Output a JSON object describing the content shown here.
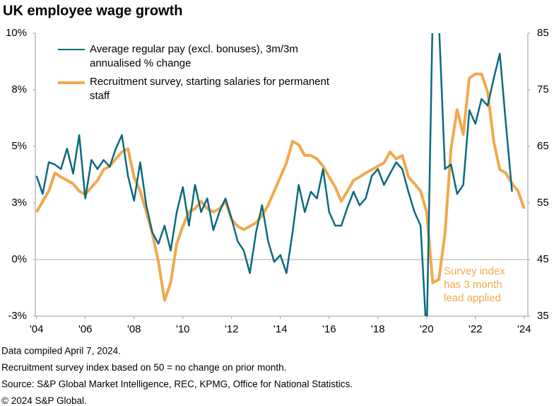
{
  "chart_data": {
    "type": "line",
    "title": "UK employee  wage growth",
    "x": [
      2004,
      2004.25,
      2004.5,
      2004.75,
      2005,
      2005.25,
      2005.5,
      2005.75,
      2006,
      2006.25,
      2006.5,
      2006.75,
      2007,
      2007.25,
      2007.5,
      2007.75,
      2008,
      2008.25,
      2008.5,
      2008.75,
      2009,
      2009.25,
      2009.5,
      2009.75,
      2010,
      2010.25,
      2010.5,
      2010.75,
      2011,
      2011.25,
      2011.5,
      2011.75,
      2012,
      2012.25,
      2012.5,
      2012.75,
      2013,
      2013.25,
      2013.5,
      2013.75,
      2014,
      2014.25,
      2014.5,
      2014.75,
      2015,
      2015.25,
      2015.5,
      2015.75,
      2016,
      2016.25,
      2016.5,
      2016.75,
      2017,
      2017.25,
      2017.5,
      2017.75,
      2018,
      2018.25,
      2018.5,
      2018.75,
      2019,
      2019.25,
      2019.5,
      2019.75,
      2020,
      2020.25,
      2020.5,
      2020.75,
      2021,
      2021.25,
      2021.5,
      2021.75,
      2022,
      2022.25,
      2022.5,
      2022.75,
      2023,
      2023.25,
      2023.5,
      2023.75,
      2024
    ],
    "series": [
      {
        "name": "Average regular pay (excl. bonuses), 3m/3m annualised % change",
        "color": "#0b6a7e",
        "axis": "y",
        "values": [
          3.7,
          2.9,
          4.3,
          4.2,
          4.0,
          4.9,
          3.8,
          5.5,
          2.7,
          4.4,
          4.0,
          4.4,
          4.1,
          4.9,
          5.5,
          3.7,
          2.6,
          4.3,
          2.4,
          1.2,
          0.7,
          1.5,
          0.4,
          2.1,
          3.2,
          1.5,
          3.3,
          2.1,
          2.7,
          1.3,
          2.1,
          2.7,
          1.8,
          0.8,
          0.4,
          -0.6,
          1.2,
          2.4,
          0.8,
          -0.1,
          0.2,
          -0.6,
          1.2,
          3.3,
          2.1,
          3.0,
          2.7,
          4.0,
          2.1,
          1.5,
          1.5,
          2.3,
          3.0,
          2.4,
          2.7,
          3.7,
          4.0,
          3.3,
          3.8,
          4.3,
          4.0,
          3.0,
          2.1,
          1.5,
          -3.5,
          11,
          10.5,
          4.0,
          4.2,
          2.9,
          3.3,
          6.6,
          6.0,
          7.1,
          6.8,
          8.0,
          9.1,
          6.0,
          3.0,
          null,
          null
        ]
      },
      {
        "name": "Recruitment survey, starting salaries for permanent staff",
        "color": "#f0a94c",
        "axis": "y2",
        "values": [
          53.4,
          55.3,
          57.1,
          60.3,
          59.6,
          59.0,
          58.4,
          57.1,
          56.5,
          57.8,
          59.0,
          60.9,
          61.5,
          62.8,
          64.0,
          64.6,
          59.6,
          57.1,
          53.4,
          49.6,
          44.6,
          37.8,
          40.9,
          47.8,
          50.9,
          53.4,
          54.0,
          55.3,
          54.0,
          53.4,
          54.0,
          55.3,
          52.1,
          50.9,
          50.3,
          50.9,
          51.5,
          52.8,
          54.6,
          57.1,
          59.6,
          62.1,
          65.9,
          65.3,
          63.4,
          63.4,
          62.8,
          61.5,
          59.6,
          57.8,
          55.3,
          57.1,
          59.0,
          59.6,
          60.3,
          60.9,
          61.5,
          62.1,
          64.0,
          62.8,
          63.4,
          59.6,
          58.4,
          57.1,
          53.4,
          40.9,
          41.5,
          49.6,
          64.6,
          71.5,
          67.1,
          77.1,
          77.8,
          77.8,
          74.6,
          65.9,
          60.9,
          60.3,
          58.4,
          57.1,
          54.0
        ]
      }
    ],
    "xlim": [
      2003.95,
      2024.15
    ],
    "xticks": [
      {
        "value": 2004,
        "label": "'04"
      },
      {
        "value": 2006,
        "label": "'06"
      },
      {
        "value": 2008,
        "label": "'08"
      },
      {
        "value": 2010,
        "label": "'10"
      },
      {
        "value": 2012,
        "label": "'12"
      },
      {
        "value": 2014,
        "label": "'14"
      },
      {
        "value": 2016,
        "label": "'16"
      },
      {
        "value": 2018,
        "label": "'18"
      },
      {
        "value": 2020,
        "label": "'20"
      },
      {
        "value": 2022,
        "label": "'22"
      },
      {
        "value": 2024,
        "label": "'24"
      }
    ],
    "ylim": [
      -2.5,
      10
    ],
    "yticks": [
      {
        "value": -2.5,
        "label": "-3%"
      },
      {
        "value": 0,
        "label": "0%"
      },
      {
        "value": 2.5,
        "label": "3%"
      },
      {
        "value": 5,
        "label": "5%"
      },
      {
        "value": 7.5,
        "label": "8%"
      },
      {
        "value": 10,
        "label": "10%"
      }
    ],
    "y2lim": [
      35,
      85
    ],
    "y2ticks": [
      35,
      45,
      55,
      65,
      75,
      85
    ],
    "grid": false,
    "legend": "top-left",
    "annotation": [
      "Survey index",
      "has 3 month",
      "lead applied"
    ],
    "notes": [
      "Data compiled April 7, 2024.",
      "Recruitment survey index based on 50 = no change on prior month.",
      "Source: S&P Global Market Intelligence, REC, KPMG, Office for National Statistics.",
      "© 2024 S&P Global."
    ]
  }
}
